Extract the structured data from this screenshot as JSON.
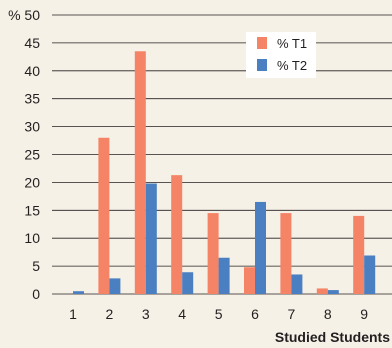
{
  "chart_data": {
    "type": "bar",
    "categories": [
      "1",
      "2",
      "3",
      "4",
      "5",
      "6",
      "7",
      "8",
      "9"
    ],
    "series": [
      {
        "name": "% T1",
        "values": [
          0,
          28,
          43.5,
          21.3,
          14.5,
          4.8,
          14.5,
          1,
          14
        ],
        "color": "#f58466"
      },
      {
        "name": "% T2",
        "values": [
          0.5,
          2.8,
          19.8,
          3.9,
          6.5,
          16.5,
          3.5,
          0.7,
          6.9
        ],
        "color": "#4a7fc1"
      }
    ],
    "yticks": [
      "0",
      "5",
      "10",
      "15",
      "20",
      "25",
      "30",
      "35",
      "40",
      "45",
      "% 50"
    ],
    "ylim": [
      0,
      50
    ],
    "xlabel": "Studied Students",
    "ylabel": "",
    "title": "",
    "grid": true,
    "legend_position": "top-right"
  }
}
